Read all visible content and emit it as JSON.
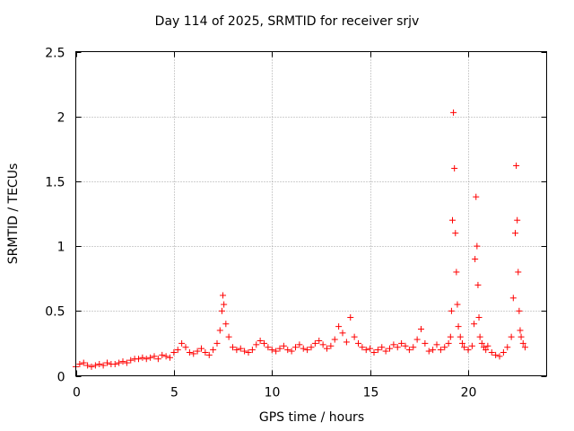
{
  "chart_data": {
    "type": "scatter",
    "title": "Day 114 of 2025, SRMTID for receiver srjv",
    "xlabel": "GPS time / hours",
    "ylabel": "SRMTID / TECUs",
    "xlim": [
      0,
      24
    ],
    "ylim": [
      0,
      2.5
    ],
    "xticks": [
      0,
      5,
      10,
      15,
      20
    ],
    "yticks": [
      0,
      0.5,
      1,
      1.5,
      2,
      2.5
    ],
    "xtick_labels": [
      "0",
      "5",
      "10",
      "15",
      "20"
    ],
    "ytick_labels": [
      "0",
      "0.5",
      "1",
      "1.5",
      "2",
      "2.5"
    ],
    "grid": true,
    "marker": "+",
    "series": [
      {
        "name": "SRMTID",
        "color": "#ff0000",
        "x": [
          0.0,
          0.2,
          0.4,
          0.6,
          0.8,
          1.0,
          1.2,
          1.4,
          1.6,
          1.8,
          2.0,
          2.2,
          2.4,
          2.6,
          2.8,
          3.0,
          3.2,
          3.4,
          3.6,
          3.8,
          4.0,
          4.2,
          4.4,
          4.6,
          4.8,
          5.0,
          5.2,
          5.4,
          5.6,
          5.8,
          6.0,
          6.2,
          6.4,
          6.6,
          6.8,
          7.0,
          7.2,
          7.35,
          7.45,
          7.5,
          7.55,
          7.65,
          7.8,
          8.0,
          8.2,
          8.4,
          8.6,
          8.8,
          9.0,
          9.2,
          9.4,
          9.6,
          9.8,
          10.0,
          10.2,
          10.4,
          10.6,
          10.8,
          11.0,
          11.2,
          11.4,
          11.6,
          11.8,
          12.0,
          12.2,
          12.4,
          12.6,
          12.8,
          13.0,
          13.2,
          13.4,
          13.6,
          13.8,
          14.0,
          14.2,
          14.4,
          14.6,
          14.8,
          15.0,
          15.2,
          15.4,
          15.6,
          15.8,
          16.0,
          16.2,
          16.4,
          16.6,
          16.8,
          17.0,
          17.2,
          17.4,
          17.6,
          17.8,
          18.0,
          18.2,
          18.4,
          18.6,
          18.8,
          19.0,
          19.1,
          19.15,
          19.2,
          19.25,
          19.3,
          19.35,
          19.4,
          19.45,
          19.5,
          19.6,
          19.7,
          19.8,
          20.0,
          20.2,
          20.3,
          20.35,
          20.4,
          20.45,
          20.5,
          20.55,
          20.6,
          20.7,
          20.8,
          20.9,
          21.0,
          21.2,
          21.4,
          21.6,
          21.8,
          22.0,
          22.2,
          22.3,
          22.4,
          22.45,
          22.5,
          22.55,
          22.6,
          22.65,
          22.7,
          22.8,
          22.9
        ],
        "y": [
          0.07,
          0.09,
          0.1,
          0.08,
          0.07,
          0.08,
          0.09,
          0.08,
          0.1,
          0.09,
          0.09,
          0.1,
          0.11,
          0.1,
          0.12,
          0.13,
          0.13,
          0.14,
          0.13,
          0.14,
          0.15,
          0.13,
          0.16,
          0.15,
          0.14,
          0.18,
          0.2,
          0.25,
          0.22,
          0.18,
          0.17,
          0.19,
          0.21,
          0.18,
          0.16,
          0.2,
          0.25,
          0.35,
          0.5,
          0.62,
          0.55,
          0.4,
          0.3,
          0.22,
          0.2,
          0.21,
          0.19,
          0.18,
          0.2,
          0.24,
          0.27,
          0.25,
          0.22,
          0.2,
          0.19,
          0.21,
          0.23,
          0.2,
          0.19,
          0.22,
          0.24,
          0.21,
          0.2,
          0.22,
          0.25,
          0.27,
          0.24,
          0.21,
          0.23,
          0.28,
          0.38,
          0.33,
          0.26,
          0.45,
          0.3,
          0.25,
          0.22,
          0.2,
          0.21,
          0.18,
          0.2,
          0.22,
          0.19,
          0.21,
          0.24,
          0.22,
          0.25,
          0.23,
          0.2,
          0.22,
          0.28,
          0.36,
          0.25,
          0.19,
          0.2,
          0.24,
          0.2,
          0.22,
          0.25,
          0.3,
          0.5,
          1.2,
          2.03,
          1.6,
          1.1,
          0.8,
          0.55,
          0.38,
          0.3,
          0.25,
          0.22,
          0.2,
          0.23,
          0.4,
          0.9,
          1.38,
          1.0,
          0.7,
          0.45,
          0.3,
          0.25,
          0.22,
          0.2,
          0.23,
          0.18,
          0.16,
          0.15,
          0.18,
          0.22,
          0.3,
          0.6,
          1.1,
          1.62,
          1.2,
          0.8,
          0.5,
          0.35,
          0.3,
          0.25,
          0.22
        ]
      }
    ]
  }
}
